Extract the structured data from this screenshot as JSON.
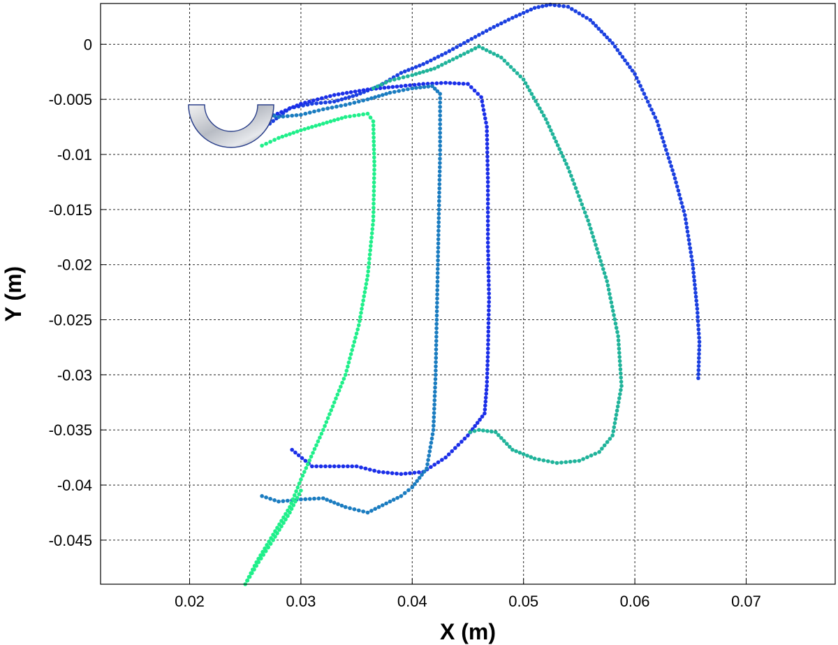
{
  "chart_data": {
    "type": "scatter",
    "title": "",
    "xlabel": "X (m)",
    "ylabel": "Y (m)",
    "xlim": [
      0.012,
      0.078
    ],
    "ylim": [
      -0.049,
      0.0037
    ],
    "grid": true,
    "xticks": [
      0.02,
      0.03,
      0.04,
      0.05,
      0.06,
      0.07
    ],
    "xtick_labels": [
      "0.02",
      "0.03",
      "0.04",
      "0.05",
      "0.06",
      "0.07"
    ],
    "yticks": [
      0,
      -0.005,
      -0.01,
      -0.015,
      -0.02,
      -0.025,
      -0.03,
      -0.035,
      -0.04,
      -0.045
    ],
    "ytick_labels": [
      "0",
      "-0.005",
      "-0.01",
      "-0.015",
      "-0.02",
      "-0.025",
      "-0.03",
      "-0.035",
      "-0.04",
      "-0.045"
    ],
    "gripper_icon": "u-shaped-gripper-icon",
    "series": [
      {
        "color": "#1a3fe0",
        "points": [
          [
            0.0272,
            -0.0072
          ],
          [
            0.029,
            -0.0058
          ],
          [
            0.031,
            -0.0054
          ],
          [
            0.033,
            -0.0052
          ],
          [
            0.035,
            -0.0046
          ],
          [
            0.037,
            -0.0038
          ],
          [
            0.039,
            -0.0026
          ],
          [
            0.041,
            -0.0018
          ],
          [
            0.043,
            -0.0008
          ],
          [
            0.045,
            0.0003
          ],
          [
            0.047,
            0.0014
          ],
          [
            0.049,
            0.0024
          ],
          [
            0.051,
            0.0033
          ],
          [
            0.0524,
            0.0036
          ],
          [
            0.054,
            0.0034
          ],
          [
            0.056,
            0.0022
          ],
          [
            0.058,
            0.0001
          ],
          [
            0.06,
            -0.0027
          ],
          [
            0.062,
            -0.007
          ],
          [
            0.0635,
            -0.0118
          ],
          [
            0.0645,
            -0.0155
          ],
          [
            0.0652,
            -0.02
          ],
          [
            0.0656,
            -0.024
          ],
          [
            0.0658,
            -0.027
          ],
          [
            0.0657,
            -0.0303
          ]
        ]
      },
      {
        "color": "#1a2ee8",
        "points": [
          [
            0.0272,
            -0.0066
          ],
          [
            0.03,
            -0.0054
          ],
          [
            0.033,
            -0.0046
          ],
          [
            0.036,
            -0.0041
          ],
          [
            0.039,
            -0.0038
          ],
          [
            0.041,
            -0.0036
          ],
          [
            0.043,
            -0.0035
          ],
          [
            0.045,
            -0.0036
          ],
          [
            0.0462,
            -0.0048
          ],
          [
            0.0467,
            -0.0075
          ],
          [
            0.0468,
            -0.0125
          ],
          [
            0.0468,
            -0.018
          ],
          [
            0.0469,
            -0.023
          ],
          [
            0.0468,
            -0.028
          ],
          [
            0.0467,
            -0.031
          ],
          [
            0.0465,
            -0.0335
          ],
          [
            0.045,
            -0.0355
          ],
          [
            0.043,
            -0.0375
          ],
          [
            0.041,
            -0.0388
          ],
          [
            0.039,
            -0.039
          ],
          [
            0.037,
            -0.0388
          ],
          [
            0.035,
            -0.0383
          ],
          [
            0.033,
            -0.0383
          ],
          [
            0.031,
            -0.0383
          ],
          [
            0.0292,
            -0.0368
          ]
        ]
      },
      {
        "color": "#1a7cc0",
        "points": [
          [
            0.0265,
            -0.0062
          ],
          [
            0.028,
            -0.0066
          ],
          [
            0.03,
            -0.0064
          ],
          [
            0.032,
            -0.0059
          ],
          [
            0.034,
            -0.0055
          ],
          [
            0.036,
            -0.005
          ],
          [
            0.038,
            -0.0044
          ],
          [
            0.04,
            -0.004
          ],
          [
            0.0418,
            -0.0038
          ],
          [
            0.0425,
            -0.0045
          ],
          [
            0.0425,
            -0.01
          ],
          [
            0.0424,
            -0.015
          ],
          [
            0.0423,
            -0.02
          ],
          [
            0.0422,
            -0.025
          ],
          [
            0.0421,
            -0.03
          ],
          [
            0.0419,
            -0.035
          ],
          [
            0.0413,
            -0.0385
          ],
          [
            0.04,
            -0.0402
          ],
          [
            0.039,
            -0.041
          ],
          [
            0.038,
            -0.0415
          ],
          [
            0.036,
            -0.0425
          ],
          [
            0.034,
            -0.042
          ],
          [
            0.032,
            -0.0412
          ],
          [
            0.03,
            -0.0413
          ],
          [
            0.028,
            -0.0415
          ],
          [
            0.0265,
            -0.041
          ]
        ]
      },
      {
        "color": "#1fb39a",
        "points": [
          [
            0.0365,
            -0.004
          ],
          [
            0.038,
            -0.0033
          ],
          [
            0.04,
            -0.0028
          ],
          [
            0.042,
            -0.0022
          ],
          [
            0.044,
            -0.0012
          ],
          [
            0.046,
            -0.0002
          ],
          [
            0.048,
            -0.0012
          ],
          [
            0.05,
            -0.0032
          ],
          [
            0.052,
            -0.0068
          ],
          [
            0.054,
            -0.0112
          ],
          [
            0.0558,
            -0.016
          ],
          [
            0.0575,
            -0.0215
          ],
          [
            0.0585,
            -0.0265
          ],
          [
            0.0588,
            -0.031
          ],
          [
            0.058,
            -0.0355
          ],
          [
            0.0568,
            -0.037
          ],
          [
            0.055,
            -0.0378
          ],
          [
            0.053,
            -0.038
          ],
          [
            0.051,
            -0.0376
          ],
          [
            0.049,
            -0.0368
          ],
          [
            0.0475,
            -0.0352
          ],
          [
            0.046,
            -0.035
          ],
          [
            0.0452,
            -0.0352
          ]
        ]
      },
      {
        "color": "#1fef8a",
        "points": [
          [
            0.0265,
            -0.0092
          ],
          [
            0.028,
            -0.0085
          ],
          [
            0.03,
            -0.0078
          ],
          [
            0.032,
            -0.0072
          ],
          [
            0.034,
            -0.0066
          ],
          [
            0.036,
            -0.0063
          ],
          [
            0.0365,
            -0.007
          ],
          [
            0.0366,
            -0.011
          ],
          [
            0.0365,
            -0.016
          ],
          [
            0.036,
            -0.021
          ],
          [
            0.0352,
            -0.0255
          ],
          [
            0.034,
            -0.03
          ],
          [
            0.032,
            -0.035
          ],
          [
            0.03,
            -0.0395
          ],
          [
            0.029,
            -0.042
          ],
          [
            0.0275,
            -0.0445
          ],
          [
            0.026,
            -0.047
          ],
          [
            0.025,
            -0.049
          ],
          [
            0.0262,
            -0.047
          ],
          [
            0.0275,
            -0.045
          ],
          [
            0.029,
            -0.0425
          ],
          [
            0.03,
            -0.0405
          ]
        ]
      }
    ]
  }
}
